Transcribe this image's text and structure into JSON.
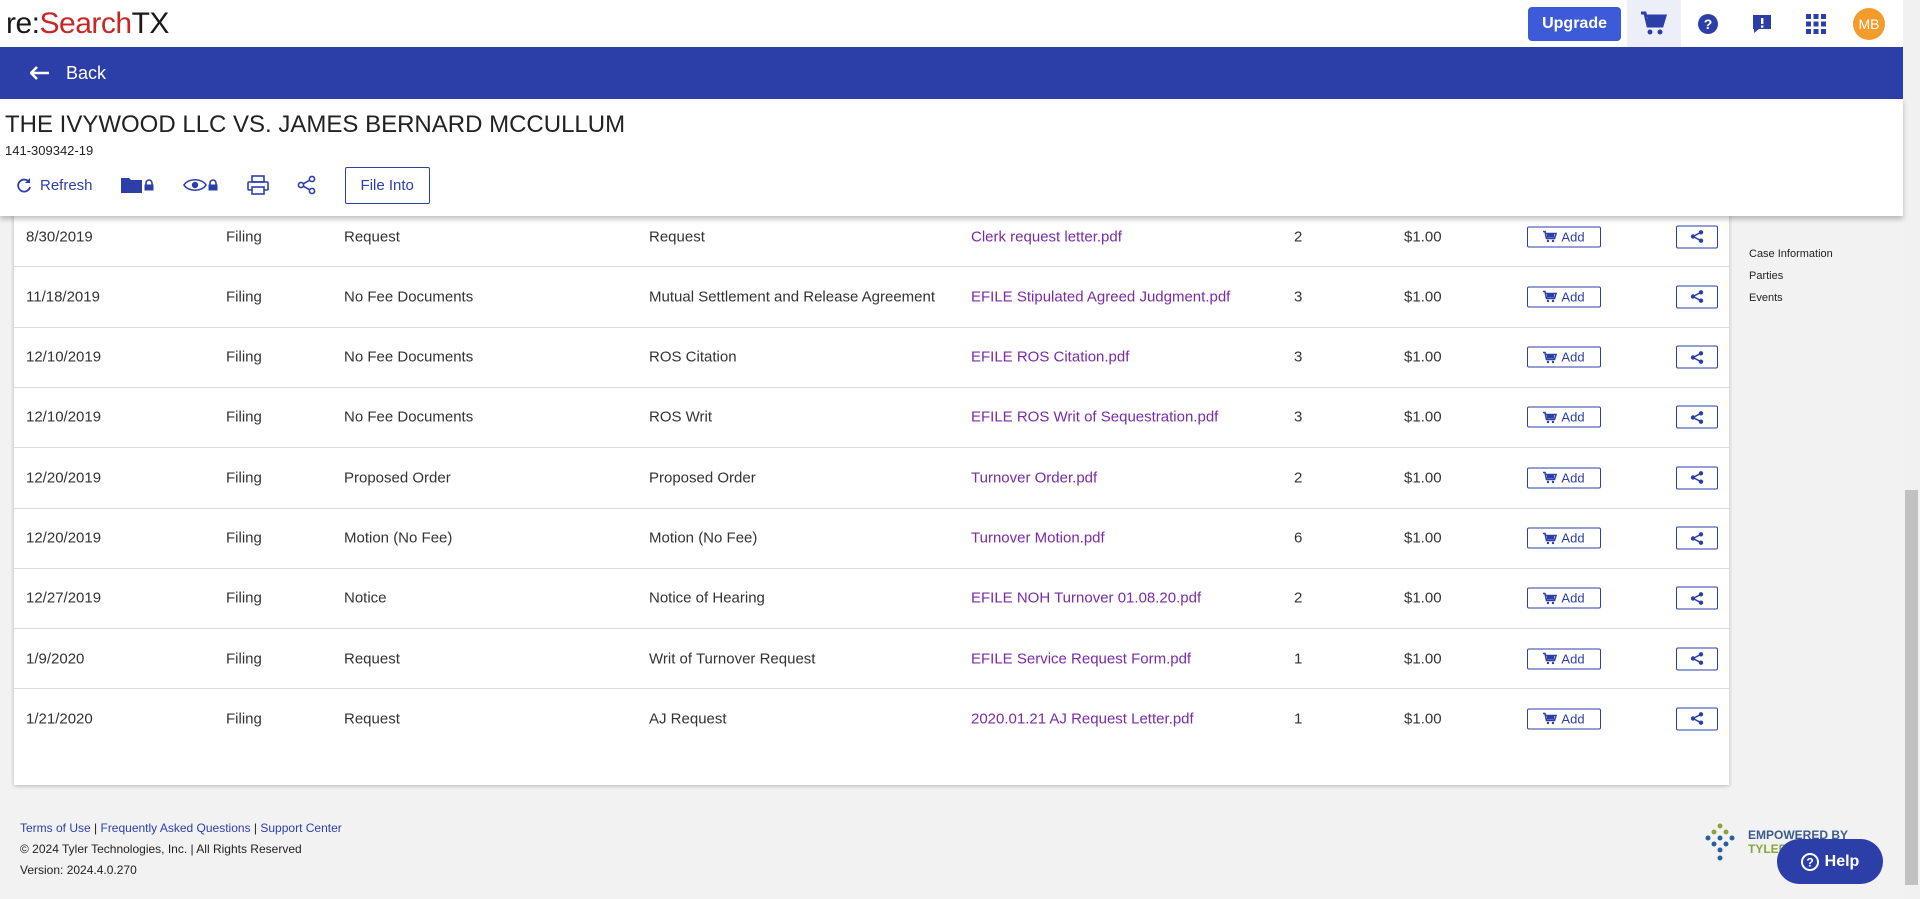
{
  "app": {
    "logo_prefix": "re:",
    "logo_highlight": "Search",
    "logo_suffix": "TX",
    "upgrade_label": "Upgrade",
    "avatar_initials": "MB"
  },
  "nav": {
    "back_label": "Back"
  },
  "case": {
    "title": "THE IVYWOOD LLC VS. JAMES BERNARD MCCULLUM",
    "number": "141-309342-19"
  },
  "actions": {
    "refresh_label": "Refresh",
    "file_into_label": "File Into"
  },
  "table": {
    "add_label": "Add",
    "rows": [
      {
        "date": "8/30/2019",
        "type": "Filing",
        "category": "Request",
        "description": "Request",
        "document": "Clerk request letter.pdf",
        "pages": "2",
        "price": "$1.00"
      },
      {
        "date": "11/18/2019",
        "type": "Filing",
        "category": "No Fee Documents",
        "description": "Mutual Settlement and Release Agreement",
        "document": "EFILE Stipulated Agreed Judgment.pdf",
        "pages": "3",
        "price": "$1.00"
      },
      {
        "date": "12/10/2019",
        "type": "Filing",
        "category": "No Fee Documents",
        "description": "ROS Citation",
        "document": "EFILE ROS Citation.pdf",
        "pages": "3",
        "price": "$1.00"
      },
      {
        "date": "12/10/2019",
        "type": "Filing",
        "category": "No Fee Documents",
        "description": "ROS Writ",
        "document": "EFILE ROS Writ of Sequestration.pdf",
        "pages": "3",
        "price": "$1.00"
      },
      {
        "date": "12/20/2019",
        "type": "Filing",
        "category": "Proposed Order",
        "description": "Proposed Order",
        "document": "Turnover Order.pdf",
        "pages": "2",
        "price": "$1.00"
      },
      {
        "date": "12/20/2019",
        "type": "Filing",
        "category": "Motion (No Fee)",
        "description": "Motion (No Fee)",
        "document": "Turnover Motion.pdf",
        "pages": "6",
        "price": "$1.00"
      },
      {
        "date": "12/27/2019",
        "type": "Filing",
        "category": "Notice",
        "description": "Notice of Hearing",
        "document": "EFILE NOH Turnover 01.08.20.pdf",
        "pages": "2",
        "price": "$1.00"
      },
      {
        "date": "1/9/2020",
        "type": "Filing",
        "category": "Request",
        "description": "Writ of Turnover Request",
        "document": "EFILE Service Request Form.pdf",
        "pages": "1",
        "price": "$1.00"
      },
      {
        "date": "1/21/2020",
        "type": "Filing",
        "category": "Request",
        "description": "AJ Request",
        "document": "2020.01.21 AJ Request Letter.pdf",
        "pages": "1",
        "price": "$1.00"
      }
    ]
  },
  "side_nav": {
    "items": [
      "Case Information",
      "Parties",
      "Events"
    ]
  },
  "footer": {
    "terms": "Terms of Use",
    "faq": "Frequently Asked Questions",
    "support": "Support Center",
    "copyright": "© 2024 Tyler Technologies, Inc. | All Rights Reserved",
    "version": "Version: 2024.4.0.270",
    "powered_line1": "EMPOWERED BY",
    "powered_line2": "TYLER"
  },
  "help": {
    "label": "Help"
  },
  "colors": {
    "brand_blue": "#2c3fa8",
    "upgrade_blue": "#3d5ad7",
    "link_purple": "#7b2aa8",
    "avatar_orange": "#f39c2b"
  }
}
